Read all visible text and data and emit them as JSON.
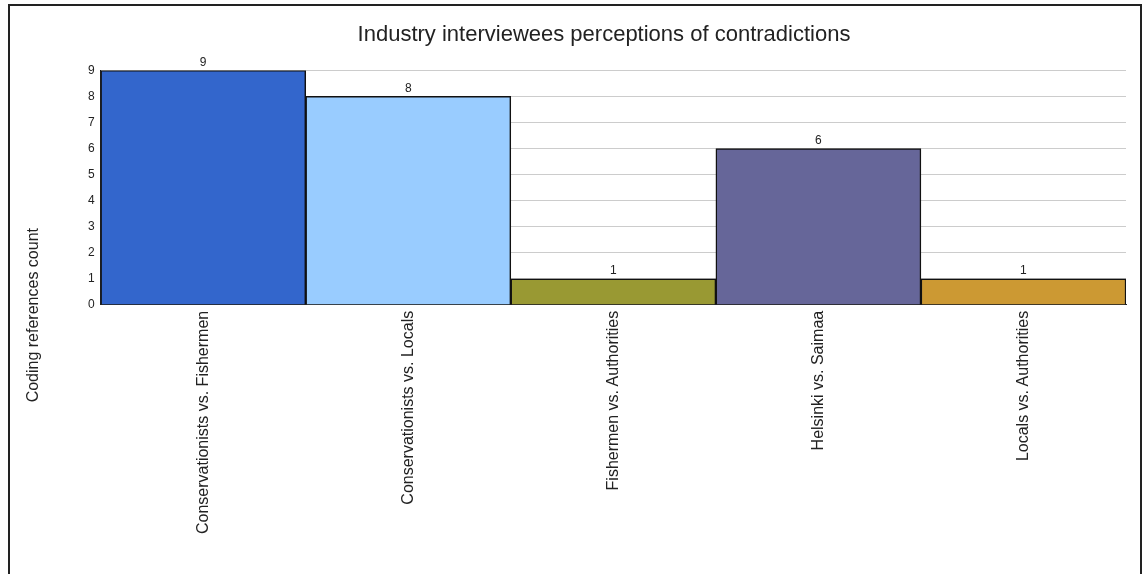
{
  "chart_data": {
    "type": "bar",
    "title": "Industry interviewees perceptions of contradictions",
    "ylabel": "Coding references count",
    "categories": [
      "Conservationists vs. Fishermen",
      "Conservationists vs. Locals",
      "Fishermen vs. Authorities",
      "Helsinki vs. Saimaa",
      "Locals vs. Authorities"
    ],
    "values": [
      9,
      8,
      1,
      6,
      1
    ],
    "colors": [
      "#3366cc",
      "#99ccff",
      "#999933",
      "#666699",
      "#cc9933"
    ],
    "ylim": [
      0,
      9
    ],
    "yticks": [
      0,
      1,
      2,
      3,
      4,
      5,
      6,
      7,
      8,
      9
    ],
    "grid": "y",
    "legend": false,
    "data_labels": true
  }
}
